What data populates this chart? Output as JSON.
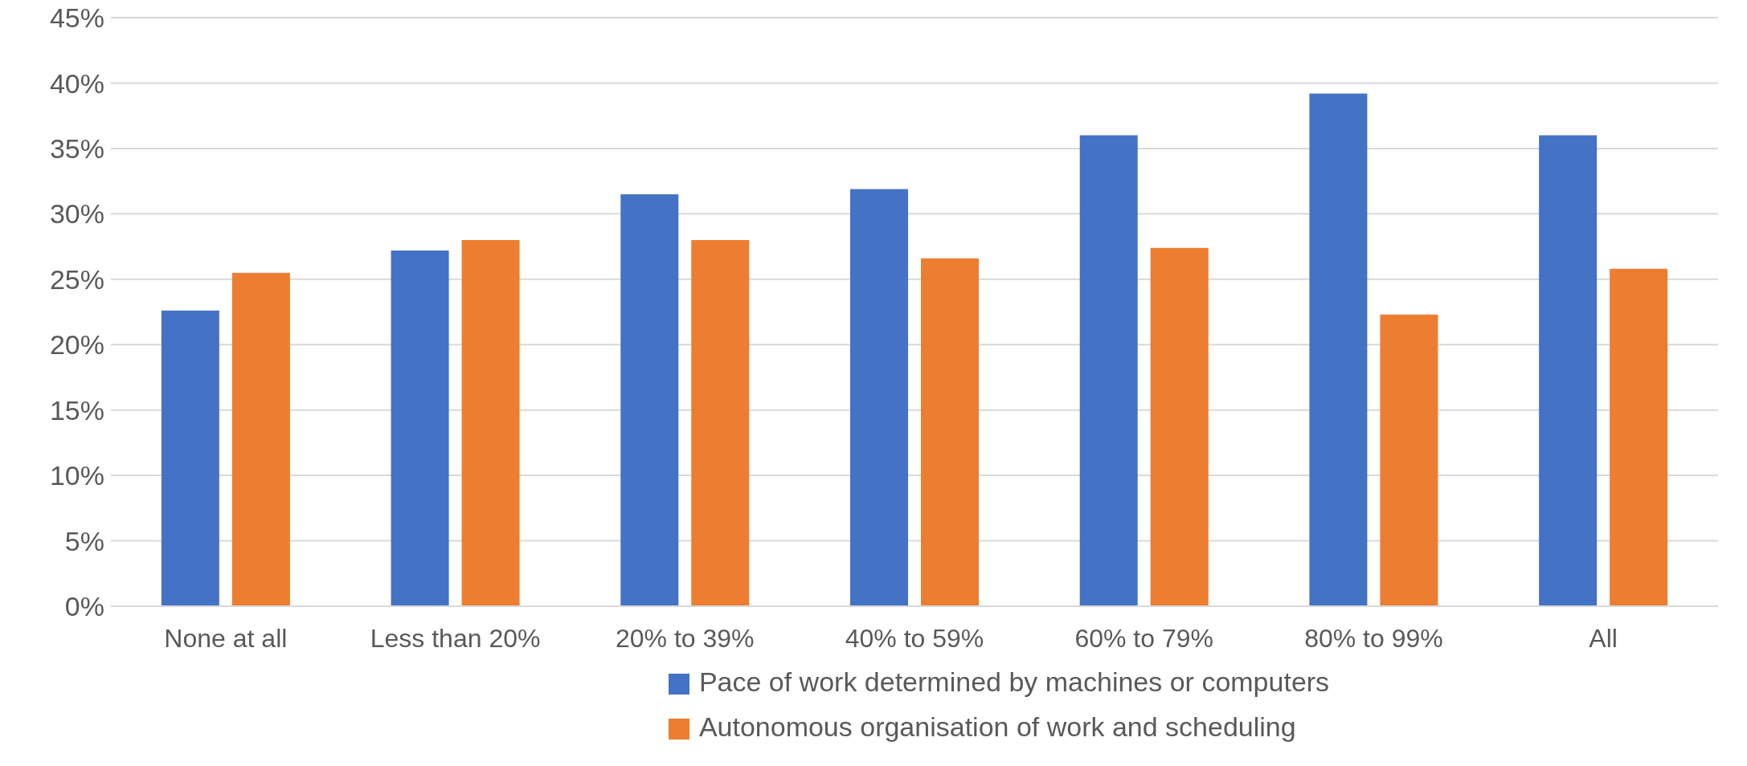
{
  "chart_data": {
    "type": "bar",
    "categories": [
      "None at all",
      "Less than 20%",
      "20% to 39%",
      "40% to 59%",
      "60% to 79%",
      "80% to 99%",
      "All"
    ],
    "series": [
      {
        "name": "Pace of work determined by machines or computers",
        "color": "#4472c4",
        "values": [
          22.6,
          27.2,
          31.5,
          31.9,
          36,
          39.2,
          36
        ]
      },
      {
        "name": "Autonomous organisation of work and scheduling",
        "color": "#ed7d31",
        "values": [
          25.5,
          28,
          28,
          26.6,
          27.4,
          22.3,
          25.8
        ]
      }
    ],
    "ylim": [
      0,
      45
    ],
    "yticks": [
      {
        "value": 0,
        "label": "0%"
      },
      {
        "value": 5,
        "label": "5%"
      },
      {
        "value": 10,
        "label": "10%"
      },
      {
        "value": 15,
        "label": "15%"
      },
      {
        "value": 20,
        "label": "20%"
      },
      {
        "value": 25,
        "label": "25%"
      },
      {
        "value": 30,
        "label": "30%"
      },
      {
        "value": 35,
        "label": "35%"
      },
      {
        "value": 40,
        "label": "40%"
      },
      {
        "value": 45,
        "label": "45%"
      }
    ],
    "grid": "y",
    "legend": "bottom"
  }
}
